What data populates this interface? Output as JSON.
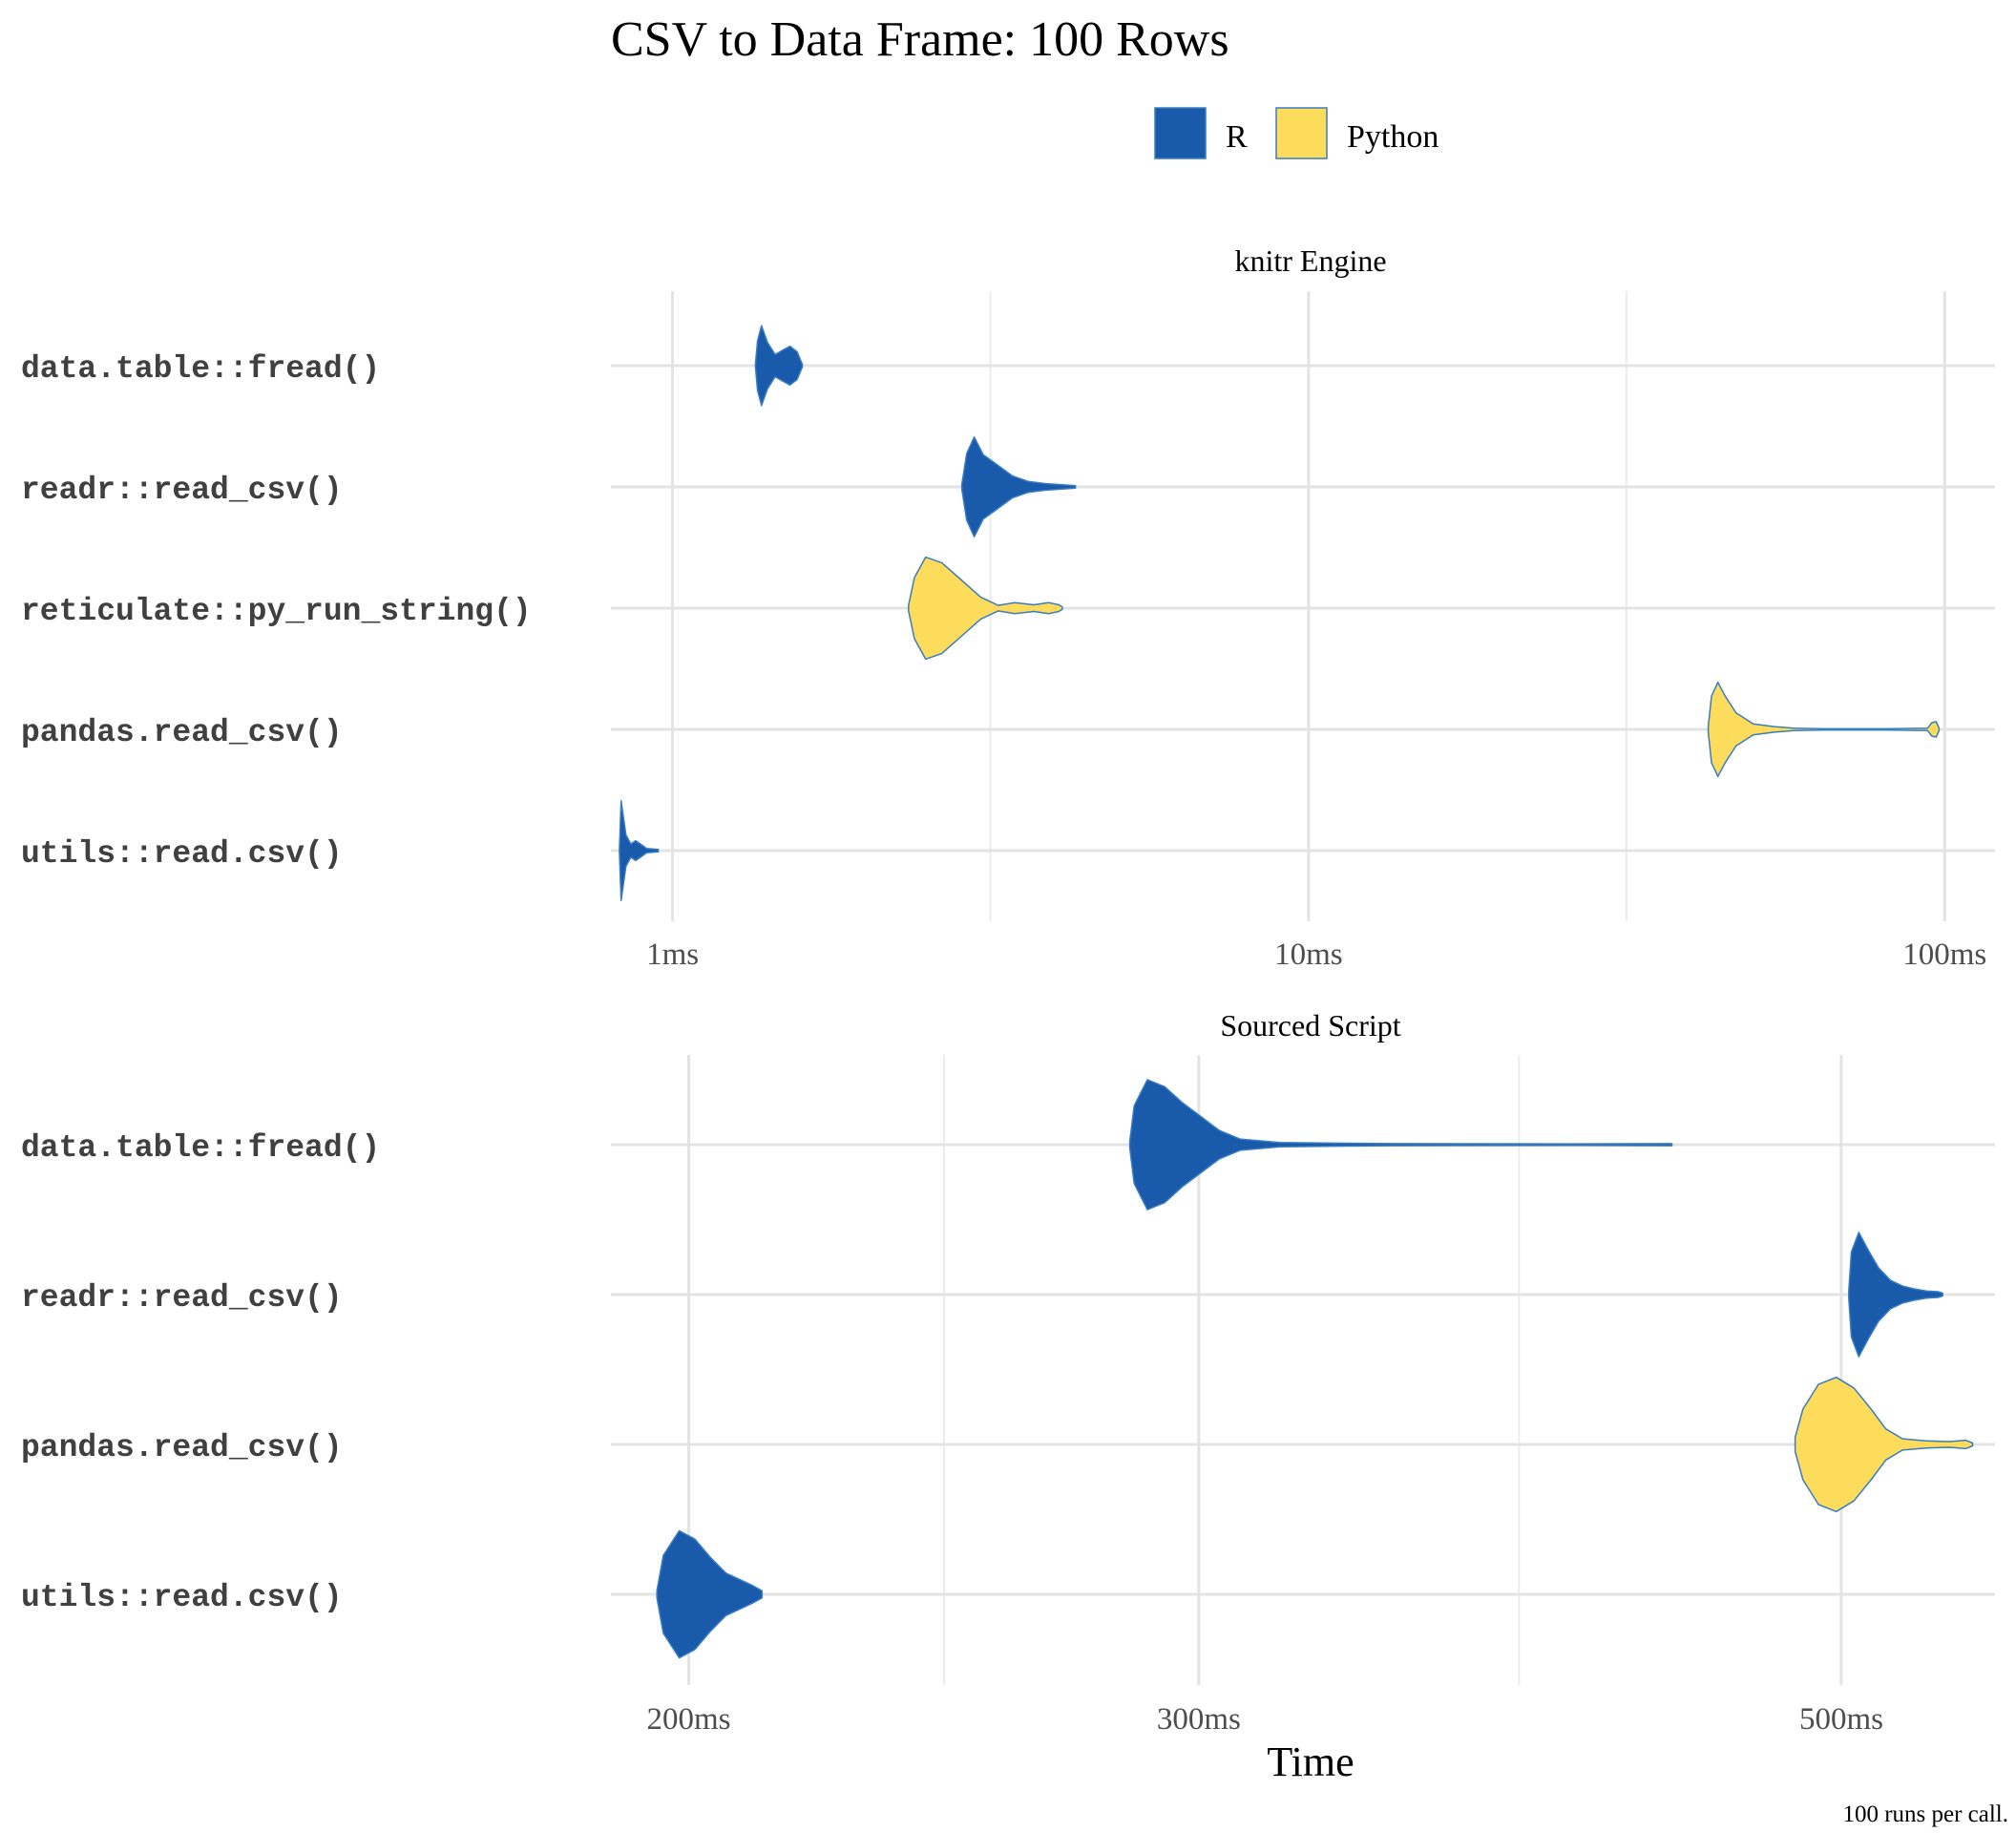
{
  "title": "CSV to Data Frame: 100 Rows",
  "legend": {
    "placement": "top-center",
    "items": [
      {
        "label": "R",
        "color": "#1a5aab"
      },
      {
        "label": "Python",
        "color": "#fcdc5a"
      }
    ]
  },
  "xlabel": "Time",
  "caption": "100 runs per call.",
  "chart_data": [
    {
      "type": "violin",
      "panel_title": "knitr Engine",
      "x_scale": "log10",
      "x_unit": "ms",
      "xlim": [
        0.8,
        120
      ],
      "ticks": [
        {
          "value": 1,
          "label": "1ms"
        },
        {
          "value": 10,
          "label": "10ms"
        },
        {
          "value": 100,
          "label": "100ms"
        }
      ],
      "minor_gridlines": [
        3.16,
        31.6
      ],
      "grid": true,
      "series": [
        {
          "name": "data.table::fread()",
          "language": "R",
          "min": 1.35,
          "max": 1.6,
          "density": [
            [
              1.35,
              0.02
            ],
            [
              1.36,
              0.45
            ],
            [
              1.38,
              0.72
            ],
            [
              1.41,
              0.42
            ],
            [
              1.45,
              0.2
            ],
            [
              1.49,
              0.28
            ],
            [
              1.53,
              0.35
            ],
            [
              1.57,
              0.25
            ],
            [
              1.6,
              0.02
            ]
          ]
        },
        {
          "name": "readr::read_csv()",
          "language": "R",
          "min": 2.85,
          "max": 4.3,
          "density": [
            [
              2.85,
              0.05
            ],
            [
              2.9,
              0.6
            ],
            [
              2.98,
              0.9
            ],
            [
              3.08,
              0.58
            ],
            [
              3.22,
              0.42
            ],
            [
              3.42,
              0.2
            ],
            [
              3.62,
              0.1
            ],
            [
              3.85,
              0.06
            ],
            [
              4.1,
              0.04
            ],
            [
              4.3,
              0.02
            ]
          ]
        },
        {
          "name": "reticulate::py_run_string()",
          "language": "Python",
          "min": 2.35,
          "max": 4.1,
          "density": [
            [
              2.35,
              0.05
            ],
            [
              2.4,
              0.55
            ],
            [
              2.5,
              0.92
            ],
            [
              2.65,
              0.82
            ],
            [
              2.85,
              0.5
            ],
            [
              3.05,
              0.2
            ],
            [
              3.25,
              0.05
            ],
            [
              3.45,
              0.1
            ],
            [
              3.7,
              0.06
            ],
            [
              3.9,
              0.1
            ],
            [
              4.05,
              0.06
            ],
            [
              4.1,
              0.02
            ]
          ]
        },
        {
          "name": "pandas.read_csv()",
          "language": "Python",
          "min": 42.5,
          "max": 98,
          "density": [
            [
              42.5,
              0.05
            ],
            [
              43,
              0.6
            ],
            [
              44,
              0.85
            ],
            [
              45.2,
              0.6
            ],
            [
              47,
              0.3
            ],
            [
              50,
              0.1
            ],
            [
              54,
              0.05
            ],
            [
              58,
              0.02
            ],
            [
              65,
              0.01
            ],
            [
              80,
              0.01
            ],
            [
              94,
              0.02
            ],
            [
              95.5,
              0.12
            ],
            [
              97,
              0.14
            ],
            [
              98,
              0.02
            ]
          ]
        },
        {
          "name": "utils::read.csv()",
          "language": "R",
          "min": 0.825,
          "max": 0.95,
          "density": [
            [
              0.825,
              0.02
            ],
            [
              0.83,
              0.9
            ],
            [
              0.845,
              0.28
            ],
            [
              0.86,
              0.12
            ],
            [
              0.875,
              0.18
            ],
            [
              0.89,
              0.12
            ],
            [
              0.91,
              0.04
            ],
            [
              0.95,
              0.02
            ]
          ]
        }
      ]
    },
    {
      "type": "violin",
      "panel_title": "Sourced Script",
      "x_scale": "log10",
      "x_unit": "ms",
      "xlim": [
        188,
        565
      ],
      "ticks": [
        {
          "value": 200,
          "label": "200ms"
        },
        {
          "value": 300,
          "label": "300ms"
        },
        {
          "value": 500,
          "label": "500ms"
        }
      ],
      "minor_gridlines": [
        245,
        387
      ],
      "grid": true,
      "series": [
        {
          "name": "data.table::fread()",
          "language": "R",
          "min": 284,
          "max": 437,
          "density": [
            [
              284,
              0.05
            ],
            [
              285,
              0.55
            ],
            [
              288,
              0.92
            ],
            [
              292,
              0.82
            ],
            [
              296,
              0.6
            ],
            [
              300,
              0.42
            ],
            [
              305,
              0.2
            ],
            [
              310,
              0.08
            ],
            [
              320,
              0.03
            ],
            [
              350,
              0.015
            ],
            [
              400,
              0.012
            ],
            [
              437,
              0.015
            ]
          ]
        },
        {
          "name": "readr::read_csv()",
          "language": "R",
          "min": 503,
          "max": 542,
          "density": [
            [
              503,
              0.05
            ],
            [
              504,
              0.6
            ],
            [
              507,
              0.88
            ],
            [
              511,
              0.62
            ],
            [
              515,
              0.38
            ],
            [
              520,
              0.2
            ],
            [
              525,
              0.12
            ],
            [
              530,
              0.08
            ],
            [
              535,
              0.05
            ],
            [
              540,
              0.04
            ],
            [
              542,
              0.02
            ]
          ]
        },
        {
          "name": "pandas.read_csv()",
          "language": "Python",
          "min": 482,
          "max": 555,
          "density": [
            [
              482,
              0.1
            ],
            [
              485,
              0.5
            ],
            [
              491,
              0.85
            ],
            [
              498,
              0.95
            ],
            [
              505,
              0.8
            ],
            [
              512,
              0.5
            ],
            [
              518,
              0.22
            ],
            [
              525,
              0.08
            ],
            [
              535,
              0.05
            ],
            [
              545,
              0.04
            ],
            [
              552,
              0.06
            ],
            [
              555,
              0.02
            ]
          ]
        },
        {
          "name": "utils::read.csv()",
          "language": "R",
          "min": 195,
          "max": 212,
          "density": [
            [
              195,
              0.05
            ],
            [
              196,
              0.55
            ],
            [
              198.5,
              0.9
            ],
            [
              201,
              0.78
            ],
            [
              203.5,
              0.52
            ],
            [
              206,
              0.3
            ],
            [
              208.5,
              0.2
            ],
            [
              210.5,
              0.12
            ],
            [
              212,
              0.05
            ]
          ]
        }
      ]
    }
  ]
}
